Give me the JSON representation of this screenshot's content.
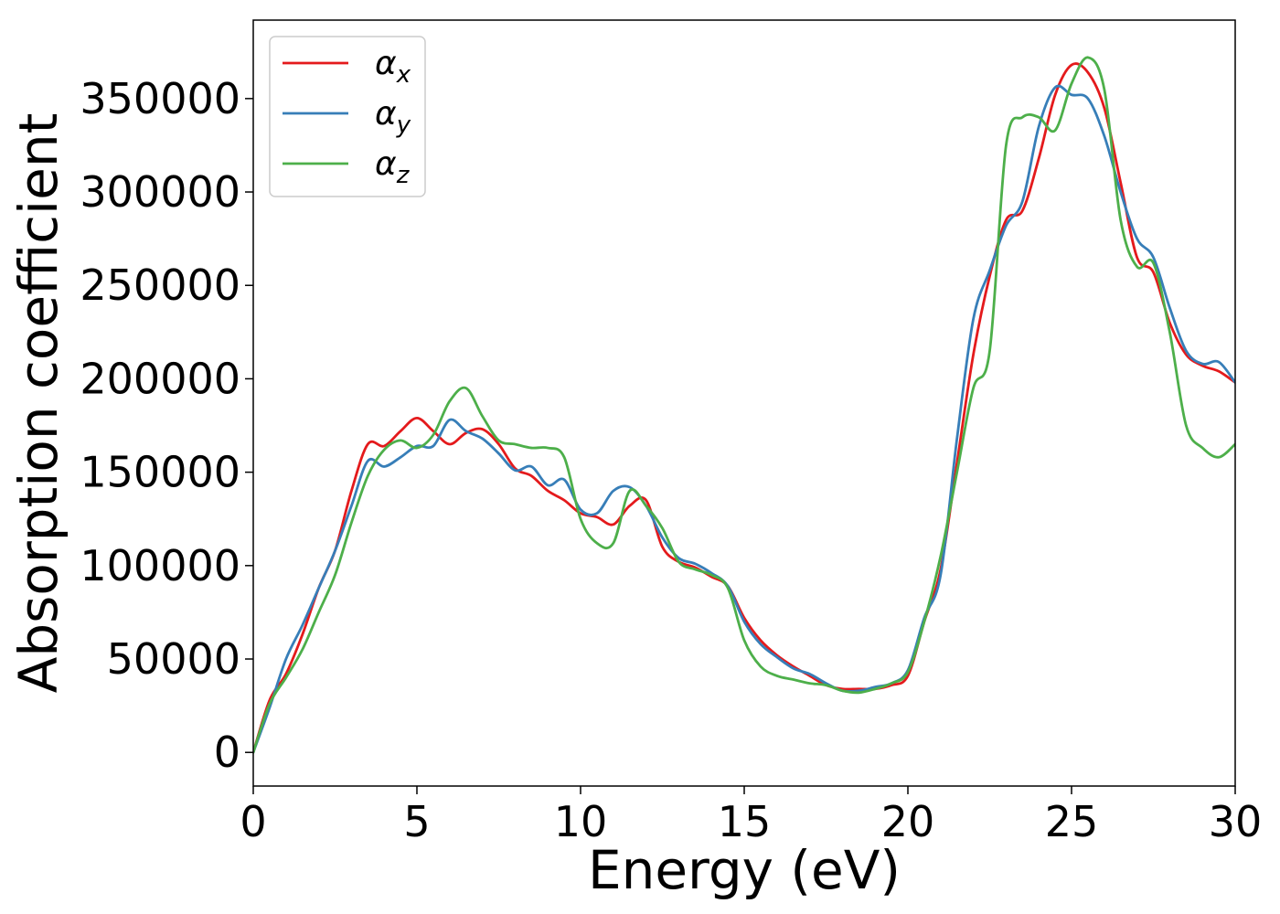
{
  "chart_data": {
    "type": "line",
    "xlabel": "Energy (eV)",
    "ylabel": "Absorption coefficient",
    "xlim": [
      0,
      30
    ],
    "ylim": [
      -18000,
      392000
    ],
    "x_ticks": [
      0,
      5,
      10,
      15,
      20,
      25,
      30
    ],
    "x_tick_labels": [
      "0",
      "5",
      "10",
      "15",
      "20",
      "25",
      "30"
    ],
    "y_ticks": [
      0,
      50000,
      100000,
      150000,
      200000,
      250000,
      300000,
      350000
    ],
    "y_tick_labels": [
      "0",
      "50000",
      "100000",
      "150000",
      "200000",
      "250000",
      "300000",
      "350000"
    ],
    "grid": false,
    "legend_position": "upper-left",
    "series": [
      {
        "name": "αx",
        "symbol": "α",
        "subscript": "x",
        "color": "#e41a1c",
        "x": [
          0,
          0.5,
          1,
          1.5,
          2,
          2.5,
          3,
          3.5,
          4,
          4.5,
          5,
          5.5,
          6,
          6.5,
          7,
          7.5,
          8,
          8.5,
          9,
          9.5,
          10,
          10.5,
          11,
          11.5,
          12,
          12.5,
          13,
          13.5,
          14,
          14.5,
          15,
          15.5,
          16,
          16.5,
          17,
          17.5,
          18,
          18.5,
          19,
          19.5,
          20,
          20.5,
          21,
          21.5,
          22,
          22.5,
          23,
          23.5,
          24,
          24.5,
          25,
          25.5,
          26,
          26.5,
          27,
          27.5,
          28,
          28.5,
          29,
          29.5,
          30
        ],
        "y": [
          0,
          28000,
          42000,
          63000,
          88000,
          108000,
          140000,
          165000,
          164000,
          172000,
          179000,
          172000,
          165000,
          171000,
          173000,
          165000,
          152000,
          148000,
          140000,
          135000,
          128000,
          126000,
          122000,
          132000,
          135000,
          110000,
          102000,
          99000,
          94000,
          89000,
          72000,
          60000,
          52000,
          46000,
          41000,
          36000,
          34000,
          34000,
          34000,
          36000,
          41000,
          70000,
          98000,
          155000,
          213000,
          255000,
          285000,
          290000,
          318000,
          352000,
          368000,
          364000,
          345000,
          305000,
          265000,
          257000,
          230000,
          213000,
          207000,
          204000,
          198000
        ]
      },
      {
        "name": "αy",
        "symbol": "α",
        "subscript": "y",
        "color": "#377eb8",
        "x": [
          0,
          0.5,
          1,
          1.5,
          2,
          2.5,
          3,
          3.5,
          4,
          4.5,
          5,
          5.5,
          6,
          6.5,
          7,
          7.5,
          8,
          8.5,
          9,
          9.5,
          10,
          10.5,
          11,
          11.5,
          12,
          12.5,
          13,
          13.5,
          14,
          14.5,
          15,
          15.5,
          16,
          16.5,
          17,
          17.5,
          18,
          18.5,
          19,
          19.5,
          20,
          20.5,
          21,
          21.5,
          22,
          22.5,
          23,
          23.5,
          24,
          24.5,
          25,
          25.5,
          26,
          26.5,
          27,
          27.5,
          28,
          28.5,
          29,
          29.5,
          30
        ],
        "y": [
          0,
          24000,
          50000,
          68000,
          88000,
          108000,
          132000,
          156000,
          153000,
          158000,
          164000,
          164000,
          178000,
          172000,
          168000,
          160000,
          151000,
          153000,
          143000,
          146000,
          130000,
          128000,
          140000,
          142000,
          132000,
          115000,
          104000,
          101000,
          96000,
          89000,
          70000,
          58000,
          51000,
          45000,
          42000,
          37000,
          33000,
          33000,
          35000,
          37000,
          44000,
          72000,
          95000,
          168000,
          232000,
          258000,
          282000,
          295000,
          335000,
          356000,
          352000,
          350000,
          330000,
          300000,
          275000,
          265000,
          238000,
          215000,
          208000,
          209000,
          198000
        ]
      },
      {
        "name": "αz",
        "symbol": "α",
        "subscript": "z",
        "color": "#4daf4a",
        "x": [
          0,
          0.5,
          1,
          1.5,
          2,
          2.5,
          3,
          3.5,
          4,
          4.5,
          5,
          5.5,
          6,
          6.5,
          7,
          7.5,
          8,
          8.5,
          9,
          9.5,
          10,
          10.5,
          11,
          11.5,
          12,
          12.5,
          13,
          13.5,
          14,
          14.5,
          15,
          15.5,
          16,
          16.5,
          17,
          17.5,
          18,
          18.5,
          19,
          19.5,
          20,
          20.5,
          21,
          21.5,
          22,
          22.5,
          23,
          23.5,
          24,
          24.5,
          25,
          25.5,
          26,
          26.5,
          27,
          27.5,
          28,
          28.5,
          29,
          29.5,
          30
        ],
        "y": [
          0,
          26000,
          40000,
          55000,
          75000,
          95000,
          123000,
          148000,
          162000,
          167000,
          163000,
          170000,
          188000,
          195000,
          180000,
          167000,
          165000,
          163000,
          163000,
          158000,
          125000,
          112000,
          112000,
          140000,
          132000,
          120000,
          102000,
          98000,
          95000,
          88000,
          60000,
          46000,
          41000,
          39000,
          37000,
          36000,
          33000,
          32000,
          34000,
          37000,
          43000,
          70000,
          105000,
          150000,
          195000,
          215000,
          325000,
          340000,
          340000,
          333000,
          358000,
          372000,
          355000,
          285000,
          260000,
          262000,
          225000,
          175000,
          163000,
          158000,
          165000
        ]
      }
    ]
  }
}
